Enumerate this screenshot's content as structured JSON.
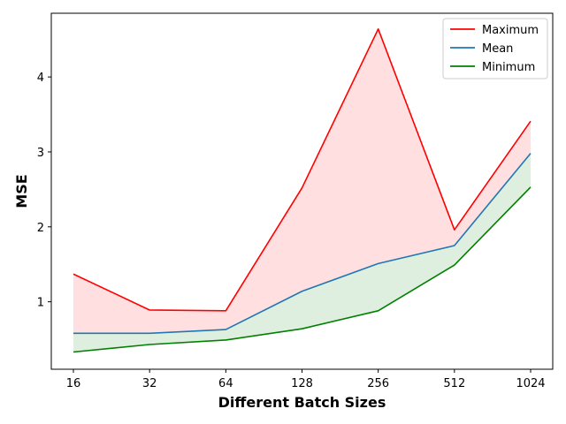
{
  "chart_data": {
    "type": "line",
    "categories": [
      "16",
      "32",
      "64",
      "128",
      "256",
      "512",
      "1024"
    ],
    "xlabel": "Different Batch Sizes",
    "ylabel": "MSE",
    "ylim": [
      0.1,
      4.85
    ],
    "yticks": [
      1,
      2,
      3,
      4
    ],
    "grid": false,
    "legend_position": "top-right",
    "series": [
      {
        "name": "Maximum",
        "color": "#ff0000",
        "values": [
          1.37,
          0.89,
          0.88,
          2.52,
          4.64,
          1.96,
          3.41
        ]
      },
      {
        "name": "Mean",
        "color": "#1f77b4",
        "values": [
          0.58,
          0.58,
          0.63,
          1.14,
          1.51,
          1.75,
          2.98
        ]
      },
      {
        "name": "Minimum",
        "color": "#008000",
        "values": [
          0.33,
          0.43,
          0.49,
          0.64,
          0.88,
          1.49,
          2.53
        ]
      }
    ],
    "fills": [
      {
        "between": [
          "Maximum",
          "Mean"
        ],
        "color": "#ff000020"
      },
      {
        "between": [
          "Mean",
          "Minimum"
        ],
        "color": "#00800020"
      }
    ]
  }
}
